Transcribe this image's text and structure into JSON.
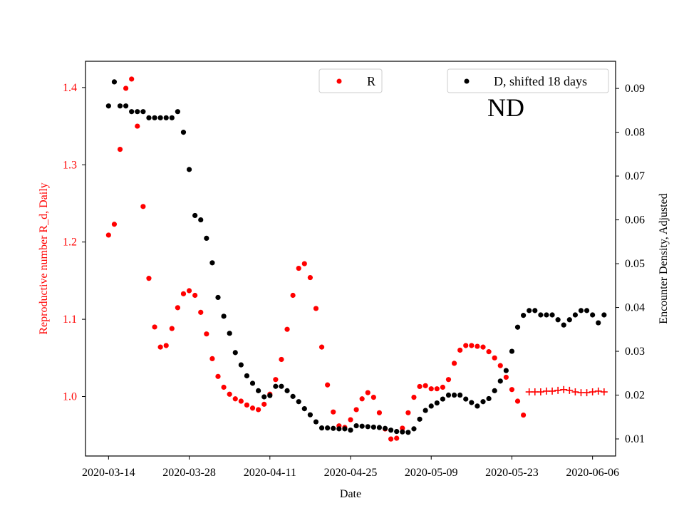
{
  "chart_data": {
    "type": "scatter",
    "xlabel": "Date",
    "ylabel_left": "Reproductive number R_d, Daily",
    "ylabel_right": "Encounter Density, Adjusted",
    "annotation": "ND",
    "x_ticks": [
      "2020-03-14",
      "2020-03-28",
      "2020-04-11",
      "2020-04-25",
      "2020-05-09",
      "2020-05-23",
      "2020-06-06"
    ],
    "y_left_ticks": [
      "1.0",
      "1.1",
      "1.2",
      "1.3",
      "1.4"
    ],
    "y_right_ticks": [
      "0.01",
      "0.02",
      "0.03",
      "0.04",
      "0.05",
      "0.06",
      "0.07",
      "0.08",
      "0.09"
    ],
    "x_range": [
      "2020-03-10",
      "2020-06-10"
    ],
    "y_left_range": [
      0.923,
      1.434
    ],
    "y_right_range": [
      0.0061,
      0.0962
    ],
    "grid": false,
    "colors": {
      "left_axis": "#ff0000",
      "R": "#ff0000",
      "D": "#000000"
    },
    "legends": [
      {
        "label": "R",
        "color": "#ff0000",
        "placement": "top-center"
      },
      {
        "label": "D, shifted 18 days",
        "color": "#000000",
        "placement": "top-right"
      }
    ],
    "series": [
      {
        "name": "R",
        "axis": "left",
        "marker": "dot",
        "color": "#ff0000",
        "x": [
          "2020-03-14",
          "2020-03-15",
          "2020-03-16",
          "2020-03-17",
          "2020-03-18",
          "2020-03-19",
          "2020-03-20",
          "2020-03-21",
          "2020-03-22",
          "2020-03-23",
          "2020-03-24",
          "2020-03-25",
          "2020-03-26",
          "2020-03-27",
          "2020-03-28",
          "2020-03-29",
          "2020-03-30",
          "2020-03-31",
          "2020-04-01",
          "2020-04-02",
          "2020-04-03",
          "2020-04-04",
          "2020-04-05",
          "2020-04-06",
          "2020-04-07",
          "2020-04-08",
          "2020-04-09",
          "2020-04-10",
          "2020-04-11",
          "2020-04-12",
          "2020-04-13",
          "2020-04-14",
          "2020-04-15",
          "2020-04-16",
          "2020-04-17",
          "2020-04-18",
          "2020-04-19",
          "2020-04-20",
          "2020-04-21",
          "2020-04-22",
          "2020-04-23",
          "2020-04-24",
          "2020-04-25",
          "2020-04-26",
          "2020-04-27",
          "2020-04-28",
          "2020-04-29",
          "2020-04-30",
          "2020-05-01",
          "2020-05-02",
          "2020-05-03",
          "2020-05-04",
          "2020-05-05",
          "2020-05-06",
          "2020-05-07",
          "2020-05-08",
          "2020-05-09",
          "2020-05-10",
          "2020-05-11",
          "2020-05-12",
          "2020-05-13",
          "2020-05-14",
          "2020-05-15",
          "2020-05-16",
          "2020-05-17",
          "2020-05-18",
          "2020-05-19",
          "2020-05-20",
          "2020-05-21",
          "2020-05-22",
          "2020-05-23",
          "2020-05-24",
          "2020-05-25"
        ],
        "values": [
          1.209,
          1.223,
          1.32,
          1.399,
          1.411,
          1.35,
          1.246,
          1.153,
          1.09,
          1.064,
          1.066,
          1.088,
          1.115,
          1.133,
          1.137,
          1.131,
          1.109,
          1.081,
          1.049,
          1.026,
          1.012,
          1.003,
          0.997,
          0.994,
          0.989,
          0.985,
          0.983,
          0.99,
          1.003,
          1.022,
          1.048,
          1.087,
          1.131,
          1.166,
          1.172,
          1.154,
          1.114,
          1.064,
          1.015,
          0.98,
          0.962,
          0.96,
          0.97,
          0.983,
          0.997,
          1.005,
          0.999,
          0.979,
          0.958,
          0.945,
          0.946,
          0.959,
          0.979,
          0.999,
          1.013,
          1.014,
          1.01,
          1.01,
          1.012,
          1.022,
          1.043,
          1.06,
          1.066,
          1.066,
          1.065,
          1.064,
          1.058,
          1.05,
          1.04,
          1.025,
          1.009,
          0.994,
          0.976
        ]
      },
      {
        "name": "R",
        "axis": "left",
        "marker": "plus",
        "color": "#ff0000",
        "x": [
          "2020-05-26",
          "2020-05-27",
          "2020-05-28",
          "2020-05-29",
          "2020-05-30",
          "2020-05-31",
          "2020-06-01",
          "2020-06-02",
          "2020-06-03",
          "2020-06-04",
          "2020-06-05",
          "2020-06-06",
          "2020-06-07",
          "2020-06-08"
        ],
        "values": [
          1.006,
          1.006,
          1.006,
          1.007,
          1.007,
          1.008,
          1.009,
          1.008,
          1.006,
          1.005,
          1.005,
          1.006,
          1.007,
          1.006
        ]
      },
      {
        "name": "D, shifted 18 days",
        "axis": "right",
        "marker": "dot",
        "color": "#000000",
        "x": [
          "2020-03-14",
          "2020-03-15",
          "2020-03-16",
          "2020-03-17",
          "2020-03-18",
          "2020-03-19",
          "2020-03-20",
          "2020-03-21",
          "2020-03-22",
          "2020-03-23",
          "2020-03-24",
          "2020-03-25",
          "2020-03-26",
          "2020-03-27",
          "2020-03-28",
          "2020-03-29",
          "2020-03-30",
          "2020-03-31",
          "2020-04-01",
          "2020-04-02",
          "2020-04-03",
          "2020-04-04",
          "2020-04-05",
          "2020-04-06",
          "2020-04-07",
          "2020-04-08",
          "2020-04-09",
          "2020-04-10",
          "2020-04-11",
          "2020-04-12",
          "2020-04-13",
          "2020-04-14",
          "2020-04-15",
          "2020-04-16",
          "2020-04-17",
          "2020-04-18",
          "2020-04-19",
          "2020-04-20",
          "2020-04-21",
          "2020-04-22",
          "2020-04-23",
          "2020-04-24",
          "2020-04-25",
          "2020-04-26",
          "2020-04-27",
          "2020-04-28",
          "2020-04-29",
          "2020-04-30",
          "2020-05-01",
          "2020-05-02",
          "2020-05-03",
          "2020-05-04",
          "2020-05-05",
          "2020-05-06",
          "2020-05-07",
          "2020-05-08",
          "2020-05-09",
          "2020-05-10",
          "2020-05-11",
          "2020-05-12",
          "2020-05-13",
          "2020-05-14",
          "2020-05-15",
          "2020-05-16",
          "2020-05-17",
          "2020-05-18",
          "2020-05-19",
          "2020-05-20",
          "2020-05-21",
          "2020-05-22",
          "2020-05-23",
          "2020-05-24",
          "2020-05-25",
          "2020-05-26",
          "2020-05-27",
          "2020-05-28",
          "2020-05-29",
          "2020-05-30",
          "2020-05-31",
          "2020-06-01",
          "2020-06-02",
          "2020-06-03",
          "2020-06-04",
          "2020-06-05",
          "2020-06-06",
          "2020-06-07",
          "2020-06-08"
        ],
        "values": [
          0.086,
          0.0915,
          0.086,
          0.086,
          0.0847,
          0.0847,
          0.0847,
          0.0833,
          0.0833,
          0.0833,
          0.0833,
          0.0833,
          0.0847,
          0.08,
          0.0715,
          0.061,
          0.06,
          0.0558,
          0.0502,
          0.0423,
          0.038,
          0.0341,
          0.0297,
          0.0269,
          0.0244,
          0.0227,
          0.021,
          0.0196,
          0.0199,
          0.022,
          0.022,
          0.021,
          0.0197,
          0.0185,
          0.0169,
          0.0155,
          0.0139,
          0.0125,
          0.0125,
          0.0124,
          0.0123,
          0.0123,
          0.012,
          0.013,
          0.0129,
          0.0128,
          0.0127,
          0.0126,
          0.0124,
          0.012,
          0.0117,
          0.0116,
          0.0115,
          0.0123,
          0.0145,
          0.0165,
          0.0175,
          0.0182,
          0.0191,
          0.02,
          0.02,
          0.02,
          0.0191,
          0.0183,
          0.0175,
          0.0185,
          0.0192,
          0.021,
          0.0232,
          0.0256,
          0.03,
          0.0355,
          0.0382,
          0.0393,
          0.0393,
          0.0383,
          0.0383,
          0.0383,
          0.0372,
          0.036,
          0.0372,
          0.0383,
          0.0393,
          0.0393,
          0.0383,
          0.0365,
          0.0383
        ]
      }
    ]
  }
}
